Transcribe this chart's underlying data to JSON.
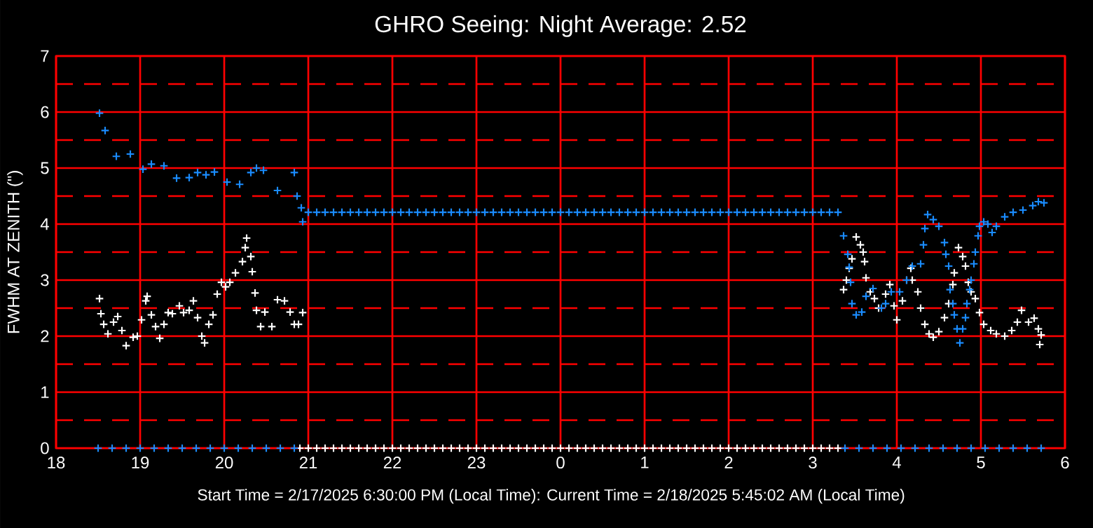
{
  "chart_data": {
    "type": "scatter",
    "title": "GHRO Seeing: Night Average: 2.52",
    "ylabel": "FWHM AT ZENITH (\")",
    "annotations": [
      "Start Time = 2/17/2025 6:30:00 PM (Local Time): Current Time = 2/18/2025 5:45:02 AM (Local Time)"
    ],
    "xlim": [
      "2025-02-17T18:00",
      "2025-02-18T06:00"
    ],
    "ylim": [
      0,
      7
    ],
    "xticks": [
      {
        "value": "2025-02-17T18:00",
        "label": "18"
      },
      {
        "value": "2025-02-17T19:00",
        "label": "19"
      },
      {
        "value": "2025-02-17T20:00",
        "label": "20"
      },
      {
        "value": "2025-02-17T21:00",
        "label": "21"
      },
      {
        "value": "2025-02-17T22:00",
        "label": "22"
      },
      {
        "value": "2025-02-17T23:00",
        "label": "23"
      },
      {
        "value": "2025-02-18T00:00",
        "label": "0"
      },
      {
        "value": "2025-02-18T01:00",
        "label": "1"
      },
      {
        "value": "2025-02-18T02:00",
        "label": "2"
      },
      {
        "value": "2025-02-18T03:00",
        "label": "3"
      },
      {
        "value": "2025-02-18T04:00",
        "label": "4"
      },
      {
        "value": "2025-02-18T05:00",
        "label": "5"
      },
      {
        "value": "2025-02-18T06:00",
        "label": "6"
      }
    ],
    "yticks": [
      0,
      {
        "value": 0.5,
        "label": null
      },
      1,
      {
        "value": 1.5,
        "label": null
      },
      2,
      {
        "value": 2.5,
        "label": null
      },
      3,
      {
        "value": 3.5,
        "label": null
      },
      4,
      {
        "value": 4.5,
        "label": null
      },
      5,
      {
        "value": 5.5,
        "label": null
      },
      6,
      {
        "value": 6.5,
        "label": null
      },
      7
    ],
    "grid": true,
    "marker": "cross",
    "series": [
      {
        "color": "#1a8cff",
        "x": [
          "2025-02-17T18:31",
          "2025-02-17T18:35",
          "2025-02-17T18:43",
          "2025-02-17T18:53",
          "2025-02-17T19:02",
          "2025-02-17T19:08",
          "2025-02-17T19:17",
          "2025-02-17T19:26",
          "2025-02-17T19:35",
          "2025-02-17T19:41",
          "2025-02-17T19:47",
          "2025-02-17T19:53",
          "2025-02-17T20:02",
          "2025-02-17T20:11",
          "2025-02-17T20:19",
          "2025-02-17T20:23",
          "2025-02-17T20:28",
          "2025-02-17T20:38",
          "2025-02-17T20:50",
          "2025-02-17T20:52",
          "2025-02-17T20:55",
          "2025-02-17T20:56",
          "2025-02-17T21:00",
          "2025-02-17T21:06",
          "2025-02-17T21:12",
          "2025-02-17T21:18",
          "2025-02-17T21:24",
          "2025-02-17T21:30",
          "2025-02-17T21:36",
          "2025-02-17T21:42",
          "2025-02-17T21:48",
          "2025-02-17T21:54",
          "2025-02-17T22:00",
          "2025-02-17T22:06",
          "2025-02-17T22:12",
          "2025-02-17T22:18",
          "2025-02-17T22:24",
          "2025-02-17T22:30",
          "2025-02-17T22:36",
          "2025-02-17T22:42",
          "2025-02-17T22:48",
          "2025-02-17T22:54",
          "2025-02-17T23:00",
          "2025-02-17T23:06",
          "2025-02-17T23:12",
          "2025-02-17T23:18",
          "2025-02-17T23:24",
          "2025-02-17T23:30",
          "2025-02-17T23:36",
          "2025-02-17T23:42",
          "2025-02-17T23:48",
          "2025-02-17T23:54",
          "2025-02-18T00:00",
          "2025-02-18T00:06",
          "2025-02-18T00:12",
          "2025-02-18T00:18",
          "2025-02-18T00:24",
          "2025-02-18T00:30",
          "2025-02-18T00:36",
          "2025-02-18T00:42",
          "2025-02-18T00:48",
          "2025-02-18T00:54",
          "2025-02-18T01:00",
          "2025-02-18T01:06",
          "2025-02-18T01:12",
          "2025-02-18T01:18",
          "2025-02-18T01:24",
          "2025-02-18T01:30",
          "2025-02-18T01:36",
          "2025-02-18T01:42",
          "2025-02-18T01:48",
          "2025-02-18T01:54",
          "2025-02-18T02:00",
          "2025-02-18T02:06",
          "2025-02-18T02:12",
          "2025-02-18T02:18",
          "2025-02-18T02:24",
          "2025-02-18T02:30",
          "2025-02-18T02:36",
          "2025-02-18T02:42",
          "2025-02-18T02:48",
          "2025-02-18T02:54",
          "2025-02-18T03:00",
          "2025-02-18T03:06",
          "2025-02-18T03:12",
          "2025-02-18T03:18",
          "2025-02-18T03:22",
          "2025-02-18T03:25",
          "2025-02-18T03:26",
          "2025-02-18T03:27",
          "2025-02-18T03:28",
          "2025-02-18T03:31",
          "2025-02-18T03:35",
          "2025-02-18T03:38",
          "2025-02-18T03:43",
          "2025-02-18T03:49",
          "2025-02-18T03:52",
          "2025-02-18T03:56",
          "2025-02-18T04:02",
          "2025-02-18T04:07",
          "2025-02-18T04:11",
          "2025-02-18T04:17",
          "2025-02-18T04:19",
          "2025-02-18T04:20",
          "2025-02-18T04:22",
          "2025-02-18T04:26",
          "2025-02-18T04:30",
          "2025-02-18T04:34",
          "2025-02-18T04:35",
          "2025-02-18T04:37",
          "2025-02-18T04:38",
          "2025-02-18T04:40",
          "2025-02-18T04:41",
          "2025-02-18T04:43",
          "2025-02-18T04:45",
          "2025-02-18T04:47",
          "2025-02-18T04:49",
          "2025-02-18T04:50",
          "2025-02-18T04:52",
          "2025-02-18T04:53",
          "2025-02-18T04:55",
          "2025-02-18T04:56",
          "2025-02-18T04:58",
          "2025-02-18T04:59",
          "2025-02-18T05:02",
          "2025-02-18T05:05",
          "2025-02-18T05:08",
          "2025-02-18T05:11",
          "2025-02-18T05:17",
          "2025-02-18T05:23",
          "2025-02-18T05:30",
          "2025-02-18T05:37",
          "2025-02-18T05:41",
          "2025-02-18T05:45"
        ],
        "values": [
          5.98,
          5.67,
          5.21,
          5.25,
          4.98,
          5.07,
          5.04,
          4.82,
          4.83,
          4.92,
          4.88,
          4.93,
          4.75,
          4.71,
          4.92,
          5.0,
          4.96,
          4.6,
          4.92,
          4.5,
          4.29,
          4.04,
          4.21,
          4.21,
          4.21,
          4.21,
          4.21,
          4.21,
          4.21,
          4.21,
          4.21,
          4.21,
          4.21,
          4.21,
          4.21,
          4.21,
          4.21,
          4.21,
          4.21,
          4.21,
          4.21,
          4.21,
          4.21,
          4.21,
          4.21,
          4.21,
          4.21,
          4.21,
          4.21,
          4.21,
          4.21,
          4.21,
          4.21,
          4.21,
          4.21,
          4.21,
          4.21,
          4.21,
          4.21,
          4.21,
          4.21,
          4.21,
          4.21,
          4.21,
          4.21,
          4.21,
          4.21,
          4.21,
          4.21,
          4.21,
          4.21,
          4.21,
          4.21,
          4.21,
          4.21,
          4.21,
          4.21,
          4.21,
          4.21,
          4.21,
          4.21,
          4.21,
          4.21,
          4.21,
          4.21,
          4.21,
          3.79,
          3.46,
          3.23,
          2.96,
          2.58,
          2.38,
          2.43,
          2.71,
          2.85,
          2.5,
          2.58,
          2.79,
          2.79,
          3.0,
          3.25,
          3.29,
          3.63,
          3.92,
          4.17,
          4.08,
          3.96,
          3.67,
          3.46,
          3.25,
          2.83,
          2.58,
          2.38,
          2.13,
          1.88,
          2.13,
          2.33,
          2.58,
          2.83,
          3.0,
          3.29,
          3.5,
          3.79,
          3.96,
          4.04,
          4.0,
          3.85,
          3.96,
          4.13,
          4.21,
          4.25,
          4.33,
          4.4,
          4.38
        ]
      },
      {
        "color": "#ffffff",
        "x": [
          "2025-02-17T18:31",
          "2025-02-17T18:32",
          "2025-02-17T18:34",
          "2025-02-17T18:37",
          "2025-02-17T18:41",
          "2025-02-17T18:44",
          "2025-02-17T18:47",
          "2025-02-17T18:50",
          "2025-02-17T18:55",
          "2025-02-17T18:58",
          "2025-02-17T19:01",
          "2025-02-17T19:04",
          "2025-02-17T19:05",
          "2025-02-17T19:08",
          "2025-02-17T19:11",
          "2025-02-17T19:14",
          "2025-02-17T19:17",
          "2025-02-17T19:20",
          "2025-02-17T19:23",
          "2025-02-17T19:28",
          "2025-02-17T19:31",
          "2025-02-17T19:35",
          "2025-02-17T19:38",
          "2025-02-17T19:41",
          "2025-02-17T19:44",
          "2025-02-17T19:46",
          "2025-02-17T19:49",
          "2025-02-17T19:52",
          "2025-02-17T19:55",
          "2025-02-17T19:58",
          "2025-02-17T20:01",
          "2025-02-17T20:04",
          "2025-02-17T20:08",
          "2025-02-17T20:13",
          "2025-02-17T20:15",
          "2025-02-17T20:16",
          "2025-02-17T20:19",
          "2025-02-17T20:20",
          "2025-02-17T20:22",
          "2025-02-17T20:23",
          "2025-02-17T20:26",
          "2025-02-17T20:29",
          "2025-02-17T20:34",
          "2025-02-17T20:38",
          "2025-02-17T20:43",
          "2025-02-17T20:47",
          "2025-02-17T20:50",
          "2025-02-17T20:53",
          "2025-02-17T20:56",
          "2025-02-18T03:22",
          "2025-02-18T03:24",
          "2025-02-18T03:26",
          "2025-02-18T03:28",
          "2025-02-18T03:31",
          "2025-02-18T03:34",
          "2025-02-18T03:36",
          "2025-02-18T03:37",
          "2025-02-18T03:38",
          "2025-02-18T03:41",
          "2025-02-18T03:44",
          "2025-02-18T03:47",
          "2025-02-18T03:52",
          "2025-02-18T03:55",
          "2025-02-18T03:58",
          "2025-02-18T04:00",
          "2025-02-18T04:04",
          "2025-02-18T04:07",
          "2025-02-18T04:10",
          "2025-02-18T04:11",
          "2025-02-18T04:15",
          "2025-02-18T04:17",
          "2025-02-18T04:20",
          "2025-02-18T04:23",
          "2025-02-18T04:26",
          "2025-02-18T04:30",
          "2025-02-18T04:34",
          "2025-02-18T04:37",
          "2025-02-18T04:40",
          "2025-02-18T04:41",
          "2025-02-18T04:44",
          "2025-02-18T04:47",
          "2025-02-18T04:49",
          "2025-02-18T04:51",
          "2025-02-18T04:53",
          "2025-02-18T04:56",
          "2025-02-18T04:59",
          "2025-02-18T05:02",
          "2025-02-18T05:07",
          "2025-02-18T05:11",
          "2025-02-18T05:17",
          "2025-02-18T05:22",
          "2025-02-18T05:26",
          "2025-02-18T05:29",
          "2025-02-18T05:34",
          "2025-02-18T05:38",
          "2025-02-18T05:41",
          "2025-02-18T05:43",
          "2025-02-18T05:42"
        ],
        "values": [
          2.67,
          2.4,
          2.21,
          2.04,
          2.25,
          2.35,
          2.1,
          1.83,
          1.98,
          2.0,
          2.29,
          2.63,
          2.71,
          2.38,
          2.17,
          1.96,
          2.21,
          2.42,
          2.4,
          2.54,
          2.42,
          2.46,
          2.63,
          2.33,
          2.0,
          1.88,
          2.21,
          2.38,
          2.75,
          2.96,
          2.88,
          2.96,
          3.13,
          3.33,
          3.58,
          3.75,
          3.42,
          3.15,
          2.77,
          2.46,
          2.17,
          2.43,
          2.17,
          2.65,
          2.63,
          2.43,
          2.21,
          2.21,
          2.42,
          2.83,
          3.0,
          3.21,
          3.38,
          3.77,
          3.63,
          3.5,
          3.33,
          3.04,
          2.79,
          2.67,
          2.5,
          2.75,
          2.92,
          2.54,
          2.29,
          2.63,
          3.0,
          3.21,
          3.0,
          2.79,
          2.5,
          2.21,
          2.04,
          1.98,
          2.08,
          2.33,
          2.58,
          2.92,
          3.13,
          3.58,
          3.42,
          3.25,
          2.96,
          2.79,
          2.67,
          2.42,
          2.21,
          2.1,
          2.04,
          2.0,
          2.1,
          2.25,
          2.46,
          2.25,
          2.32,
          2.13,
          2.02,
          1.85
        ]
      },
      {
        "color": "#1a8cff",
        "x": [
          "2025-02-17T18:30",
          "2025-02-17T18:40",
          "2025-02-17T18:50",
          "2025-02-17T19:00",
          "2025-02-17T19:10",
          "2025-02-17T19:20",
          "2025-02-17T19:30",
          "2025-02-17T19:40",
          "2025-02-17T19:50",
          "2025-02-17T20:00",
          "2025-02-17T20:10",
          "2025-02-17T20:20",
          "2025-02-17T20:30",
          "2025-02-17T20:40",
          "2025-02-17T20:50",
          "2025-02-18T03:23",
          "2025-02-18T03:33",
          "2025-02-18T03:43",
          "2025-02-18T03:53",
          "2025-02-18T04:03",
          "2025-02-18T04:13",
          "2025-02-18T04:23",
          "2025-02-18T04:33",
          "2025-02-18T04:43",
          "2025-02-18T04:53",
          "2025-02-18T05:03",
          "2025-02-18T05:13",
          "2025-02-18T05:23",
          "2025-02-18T05:33",
          "2025-02-18T05:43"
        ],
        "values": [
          0,
          0,
          0,
          0,
          0,
          0,
          0,
          0,
          0,
          0,
          0,
          0,
          0,
          0,
          0,
          0,
          0,
          0,
          0,
          0,
          0,
          0,
          0,
          0,
          0,
          0,
          0,
          0,
          0,
          0
        ]
      },
      {
        "color": "#ffffff",
        "x": [
          "2025-02-17T20:54",
          "2025-02-17T21:00",
          "2025-02-17T21:06",
          "2025-02-17T21:12",
          "2025-02-17T21:18",
          "2025-02-17T21:24",
          "2025-02-17T21:30",
          "2025-02-17T21:36",
          "2025-02-17T21:42",
          "2025-02-17T21:48",
          "2025-02-17T21:54",
          "2025-02-17T22:00",
          "2025-02-17T22:06",
          "2025-02-17T22:12",
          "2025-02-17T22:18",
          "2025-02-17T22:24",
          "2025-02-17T22:30",
          "2025-02-17T22:36",
          "2025-02-17T22:42",
          "2025-02-17T22:48",
          "2025-02-17T22:54",
          "2025-02-17T23:00",
          "2025-02-17T23:06",
          "2025-02-17T23:12",
          "2025-02-17T23:18",
          "2025-02-17T23:24",
          "2025-02-17T23:30",
          "2025-02-17T23:36",
          "2025-02-17T23:42",
          "2025-02-17T23:48",
          "2025-02-17T23:54",
          "2025-02-18T00:00",
          "2025-02-18T00:06",
          "2025-02-18T00:12",
          "2025-02-18T00:18",
          "2025-02-18T00:24",
          "2025-02-18T00:30",
          "2025-02-18T00:36",
          "2025-02-18T00:42",
          "2025-02-18T00:48",
          "2025-02-18T00:54",
          "2025-02-18T01:00",
          "2025-02-18T01:06",
          "2025-02-18T01:12",
          "2025-02-18T01:18",
          "2025-02-18T01:24",
          "2025-02-18T01:30",
          "2025-02-18T01:36",
          "2025-02-18T01:42",
          "2025-02-18T01:48",
          "2025-02-18T01:54",
          "2025-02-18T02:00",
          "2025-02-18T02:06",
          "2025-02-18T02:12",
          "2025-02-18T02:18",
          "2025-02-18T02:24",
          "2025-02-18T02:30",
          "2025-02-18T02:36",
          "2025-02-18T02:42",
          "2025-02-18T02:48",
          "2025-02-18T02:54",
          "2025-02-18T03:00",
          "2025-02-18T03:06",
          "2025-02-18T03:12",
          "2025-02-18T03:18"
        ],
        "values": [
          0,
          0,
          0,
          0,
          0,
          0,
          0,
          0,
          0,
          0,
          0,
          0,
          0,
          0,
          0,
          0,
          0,
          0,
          0,
          0,
          0,
          0,
          0,
          0,
          0,
          0,
          0,
          0,
          0,
          0,
          0,
          0,
          0,
          0,
          0,
          0,
          0,
          0,
          0,
          0,
          0,
          0,
          0,
          0,
          0,
          0,
          0,
          0,
          0,
          0,
          0,
          0,
          0,
          0,
          0,
          0,
          0,
          0,
          0,
          0,
          0,
          0,
          0,
          0,
          0
        ]
      }
    ]
  }
}
